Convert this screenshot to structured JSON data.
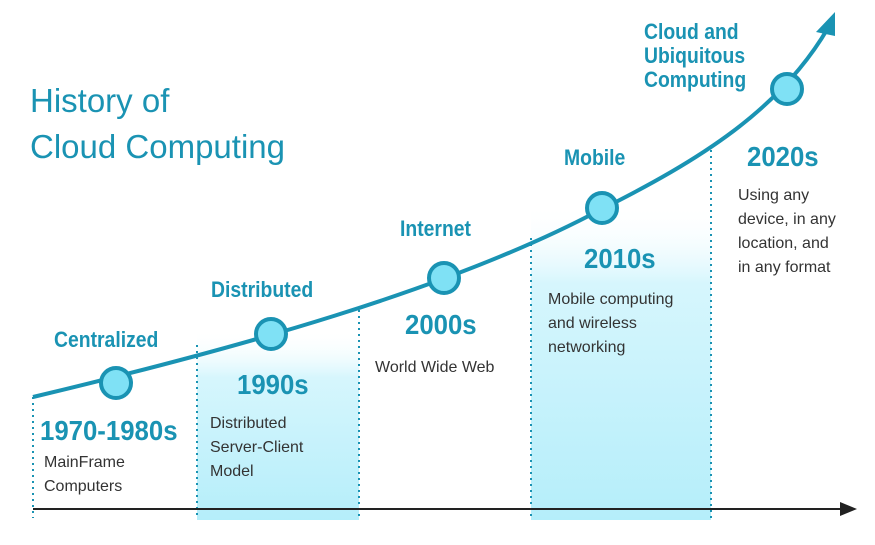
{
  "title": {
    "line1": "History of",
    "line2": "Cloud Computing"
  },
  "colors": {
    "accent": "#1a93b3",
    "node_fill": "#7fe1f5",
    "band": "#c9f3fb",
    "text": "#333333"
  },
  "eras": [
    {
      "label": "Centralized",
      "decade": "1970-1980s",
      "desc": [
        "MainFrame",
        "Computers"
      ]
    },
    {
      "label": "Distributed",
      "decade": "1990s",
      "desc": [
        "Distributed",
        "Server-Client",
        "Model"
      ]
    },
    {
      "label": "Internet",
      "decade": "2000s",
      "desc": [
        "World Wide Web"
      ]
    },
    {
      "label": "Mobile",
      "decade": "2010s",
      "desc": [
        "Mobile computing",
        "and wireless",
        "networking"
      ]
    },
    {
      "label_lines": [
        "Cloud and",
        "Ubiquitous",
        "Computing"
      ],
      "decade": "2020s",
      "desc": [
        "Using any",
        "device, in any",
        "location, and",
        "in any format"
      ]
    }
  ]
}
